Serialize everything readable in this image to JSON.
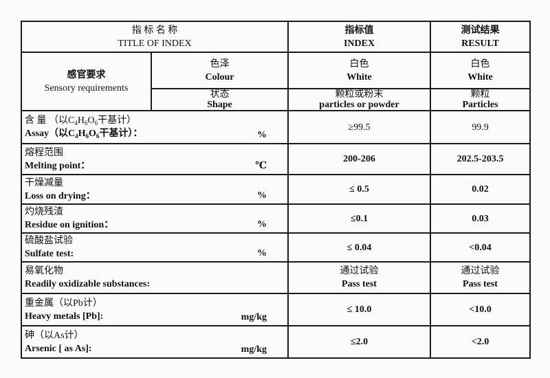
{
  "header": {
    "title_cn": "指 标 名 称",
    "title_en": "TITLE OF INDEX",
    "index_cn": "指标值",
    "index_en": "INDEX",
    "result_cn": "测试结果",
    "result_en": "RESULT"
  },
  "sensory": {
    "cn": "感官要求",
    "en": "Sensory requirements",
    "colour": {
      "cn": "色泽",
      "en": "Colour",
      "index_cn": "白色",
      "index_en": "White",
      "result_cn": "白色",
      "result_en": "White"
    },
    "shape": {
      "cn": "状态",
      "en": "Shape",
      "index_cn": "颗粒或粉末",
      "index_en": "particles or powder",
      "result_cn": "颗粒",
      "result_en": "Particles"
    }
  },
  "assay": {
    "cn_pre": "含 量 （以C",
    "en_pre": "Assay（以C",
    "s1": "4",
    "h": "H",
    "s2": "6",
    "o": "O",
    "s3": "6",
    "cn_post": "干基计）",
    "en_post": "干基计）：",
    "unit": "%",
    "index": "≥99.5",
    "result": "99.9"
  },
  "rows": [
    {
      "cn": "熔程范围",
      "en": "Melting point：",
      "unit": "℃",
      "index": "200-206",
      "result": "202.5-203.5"
    },
    {
      "cn": "干燥减量",
      "en": "Loss  on  drying：",
      "unit": "%",
      "index": "≤ 0.5",
      "result": "0.02"
    },
    {
      "cn": "灼烧残渣",
      "en": "Residue on  ignition：",
      "unit": "%",
      "index": "≤0.1",
      "result": "0.03"
    },
    {
      "cn": "硫酸盐试验",
      "en": "Sulfate test:",
      "unit": "%",
      "index": "≤ 0.04",
      "result": "<0.04"
    },
    {
      "cn": "易氧化物",
      "en": "Readily oxidizable substances:",
      "unit": "",
      "index_cn": "通过试验",
      "index": "Pass test",
      "result_cn": "通过试验",
      "result": "Pass  test"
    },
    {
      "cn": "重金属（以Pb计）",
      "en": "Heavy metals [Pb]:",
      "unit": "mg/kg",
      "index": "≤ 10.0",
      "result": "<10.0"
    },
    {
      "cn": "砷（以As计）",
      "en": "Arsenic [ as As]:",
      "unit": "mg/kg",
      "index": "≤2.0",
      "result": "<2.0"
    }
  ]
}
